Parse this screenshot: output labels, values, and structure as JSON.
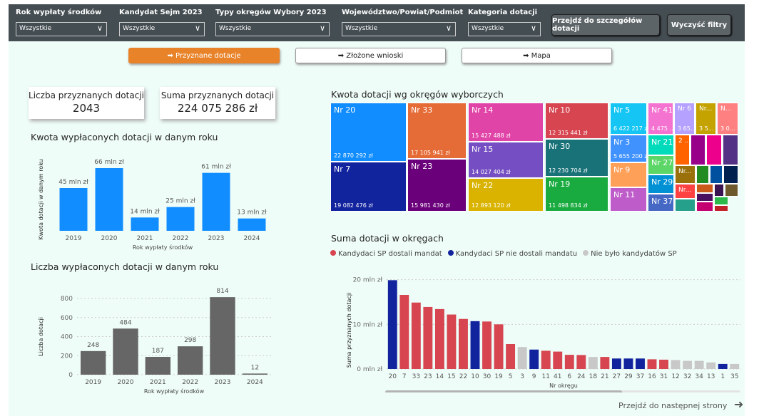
{
  "filters": [
    {
      "label": "Rok wypłaty środków",
      "value": "Wszystkie"
    },
    {
      "label": "Kandydat Sejm 2023",
      "value": "Wszystkie"
    },
    {
      "label": "Typy okręgów Wybory 2023",
      "value": "Wszystkie"
    },
    {
      "label": "Województwo/Powiat/Podmiot",
      "value": "Wszystkie"
    },
    {
      "label": "Kategoria dotacji",
      "value": "Wszystkie"
    }
  ],
  "buttons": {
    "details": "Przejdź do szczegółów dotacji",
    "clear": "Wyczyść filtry"
  },
  "nav": [
    {
      "label": "➡ Przyznane dotacje",
      "active": true
    },
    {
      "label": "➡ Złożone wnioski"
    },
    {
      "label": "➡ Mapa"
    }
  ],
  "cards": [
    {
      "title": "Liczba przyznanych dotacji",
      "value": "2043"
    },
    {
      "title": "Suma przyznanych dotacji",
      "value": "224 075 286 zł"
    }
  ],
  "chart_data": [
    {
      "type": "bar",
      "title": "Kwota wypłaconych dotacji w danym roku",
      "xlabel": "Rok wypłaty środków",
      "ylabel": "Kwota dotacji w danym roku",
      "categories": [
        "2019",
        "2020",
        "2021",
        "2022",
        "2023",
        "2024"
      ],
      "values": [
        45,
        66,
        14,
        25,
        61,
        13
      ],
      "data_labels": [
        "45 mln zł",
        "66 mln zł",
        "14 mln zł",
        "25 mln zł",
        "61 mln zł",
        "13 mln zł"
      ],
      "color": "#118dff"
    },
    {
      "type": "bar",
      "title": "Liczba wypłaconych dotacji w danym roku",
      "xlabel": "Rok wypłaty środków",
      "ylabel": "Liczba dotacji",
      "categories": [
        "2019",
        "2020",
        "2021",
        "2022",
        "2023",
        "2024"
      ],
      "values": [
        248,
        484,
        187,
        298,
        814,
        12
      ],
      "yticks": [
        "0",
        "200",
        "400",
        "600",
        "800"
      ],
      "ylim": [
        0,
        800
      ],
      "grid": true,
      "color": "#666666"
    },
    {
      "type": "treemap",
      "title": "Kwota dotacji wg okręgów wyborczych",
      "items": [
        {
          "label": "Nr 20",
          "value": "22 870 292 zł",
          "color": "#118dff"
        },
        {
          "label": "Nr 7",
          "value": "19 082 476 zł",
          "color": "#12239e"
        },
        {
          "label": "Nr 33",
          "value": "17 105 941 zł",
          "color": "#e66c37"
        },
        {
          "label": "Nr 23",
          "value": "15 981 430 zł",
          "color": "#6b007b"
        },
        {
          "label": "Nr 14",
          "value": "15 427 488 zł",
          "color": "#e044a7"
        },
        {
          "label": "Nr 15",
          "value": "14 027 404 zł",
          "color": "#744ec2"
        },
        {
          "label": "Nr 22",
          "value": "12 893 120 zł",
          "color": "#d9b300"
        },
        {
          "label": "Nr 10",
          "value": "12 315 441 zł",
          "color": "#d64550"
        },
        {
          "label": "Nr 30",
          "value": "12 230 704 zł",
          "color": "#197278"
        },
        {
          "label": "Nr 19",
          "value": "11 498 834 zł",
          "color": "#1aab40"
        },
        {
          "label": "Nr 5",
          "value": "6 422 217 zł",
          "color": "#15c6f4"
        },
        {
          "label": "Nr 3",
          "value": "5 655 200 zł",
          "color": "#4092ff"
        },
        {
          "label": "Nr 9",
          "value": "",
          "color": "#ffa058"
        },
        {
          "label": "Nr 11",
          "value": "",
          "color": "#be5dc9"
        },
        {
          "label": "Nr 41",
          "value": "4 475 ...",
          "color": "#f472d0"
        },
        {
          "label": "Nr 6",
          "value": "3 65...",
          "color": "#b5a1ff"
        },
        {
          "label": "Nr...",
          "value": "3 5...",
          "color": "#c4a200"
        },
        {
          "label": "N...",
          "value": "3 0...",
          "color": "#ff8080"
        },
        {
          "label": "Nr 21",
          "value": "",
          "color": "#00dbbc"
        },
        {
          "label": "Nr 27",
          "value": "",
          "color": "#5bd667"
        },
        {
          "label": "Nr 29",
          "value": "",
          "color": "#0091d5"
        },
        {
          "label": "Nr 37",
          "value": "",
          "color": "#4668c5"
        },
        {
          "label": "2 ...",
          "value": "",
          "color": "#ff6300"
        },
        {
          "label": "",
          "value": "",
          "color": "#99008a"
        },
        {
          "label": "",
          "value": "",
          "color": "#ec008c"
        },
        {
          "label": "",
          "value": "",
          "color": "#533285"
        },
        {
          "label": "Nr...",
          "value": "",
          "color": "#99700a"
        },
        {
          "label": "",
          "value": "",
          "color": "#228b22"
        },
        {
          "label": "",
          "value": "",
          "color": "#0050a0"
        },
        {
          "label": "",
          "value": "",
          "color": "#002050"
        },
        {
          "label": "Nr...",
          "value": "",
          "color": "#ff4141"
        },
        {
          "label": "",
          "value": "",
          "color": "#25a08a"
        },
        {
          "label": "",
          "value": "",
          "color": "#cc5a1a"
        },
        {
          "label": "",
          "value": "",
          "color": "#3a1450"
        },
        {
          "label": "",
          "value": "",
          "color": "#6e5a2d"
        },
        {
          "label": "",
          "value": "",
          "color": "#4a1060"
        },
        {
          "label": "",
          "value": "",
          "color": "#c40070"
        },
        {
          "label": "",
          "value": "",
          "color": "#2db84a"
        },
        {
          "label": "",
          "value": "",
          "color": "#c0202a"
        }
      ]
    },
    {
      "type": "bar",
      "title": "Suma dotacji w okręgach",
      "xlabel": "Nr okręgu",
      "ylabel": "Suma przyznanych dotacji",
      "yticks": [
        "0 mln zł",
        "10 mln zł",
        "20 mln zł"
      ],
      "ylim": [
        0,
        23
      ],
      "grid": true,
      "legend": [
        {
          "name": "Kandydaci SP dostali mandat",
          "color": "#d64550"
        },
        {
          "name": "Kandydaci SP nie dostali mandatu",
          "color": "#12239e"
        },
        {
          "name": "Nie było kandydatów SP",
          "color": "#c8c8c8"
        }
      ],
      "categories": [
        "20",
        "7",
        "33",
        "23",
        "14",
        "15",
        "22",
        "10",
        "30",
        "19",
        "5",
        "3",
        "9",
        "11",
        "41",
        "6",
        "24",
        "18",
        "21",
        "27",
        "29",
        "37",
        "16",
        "31",
        "12",
        "32",
        "34",
        "13",
        "1",
        "35"
      ],
      "values": [
        22.87,
        19.08,
        17.11,
        15.98,
        15.43,
        14.03,
        12.89,
        12.32,
        12.23,
        11.5,
        6.42,
        5.66,
        5.0,
        4.7,
        4.48,
        3.65,
        3.6,
        3.1,
        3.1,
        2.7,
        2.7,
        2.7,
        2.5,
        2.4,
        2.3,
        2.1,
        2.1,
        1.7,
        1.3,
        1.3
      ],
      "groups": [
        1,
        0,
        0,
        0,
        0,
        0,
        0,
        1,
        0,
        0,
        0,
        2,
        1,
        0,
        0,
        0,
        0,
        2,
        0,
        1,
        1,
        1,
        0,
        0,
        2,
        2,
        2,
        2,
        1,
        2
      ]
    }
  ],
  "next_page": "Przejdź do następnej strony",
  "next_icon": "arrow-right-icon"
}
